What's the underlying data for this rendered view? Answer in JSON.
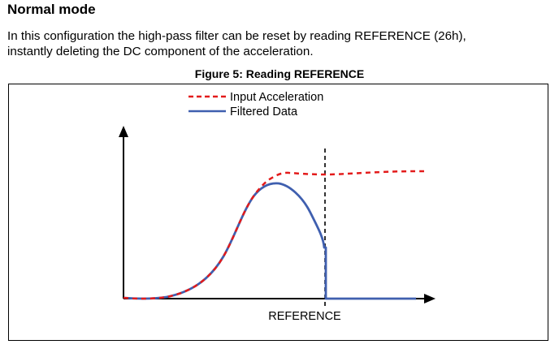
{
  "heading": "Normal mode",
  "paragraph_lines": [
    "In this configuration the high-pass filter can be reset by reading REFERENCE (26h),",
    "instantly deleting the DC component of the acceleration."
  ],
  "figure_caption": "Figure 5: Reading REFERENCE",
  "legend": {
    "input": "Input Acceleration",
    "filtered": "Filtered Data"
  },
  "x_marker_label": "REFERENCE",
  "colors": {
    "input": "#e31b1b",
    "filtered": "#3f5faf",
    "axis": "#000000"
  }
}
